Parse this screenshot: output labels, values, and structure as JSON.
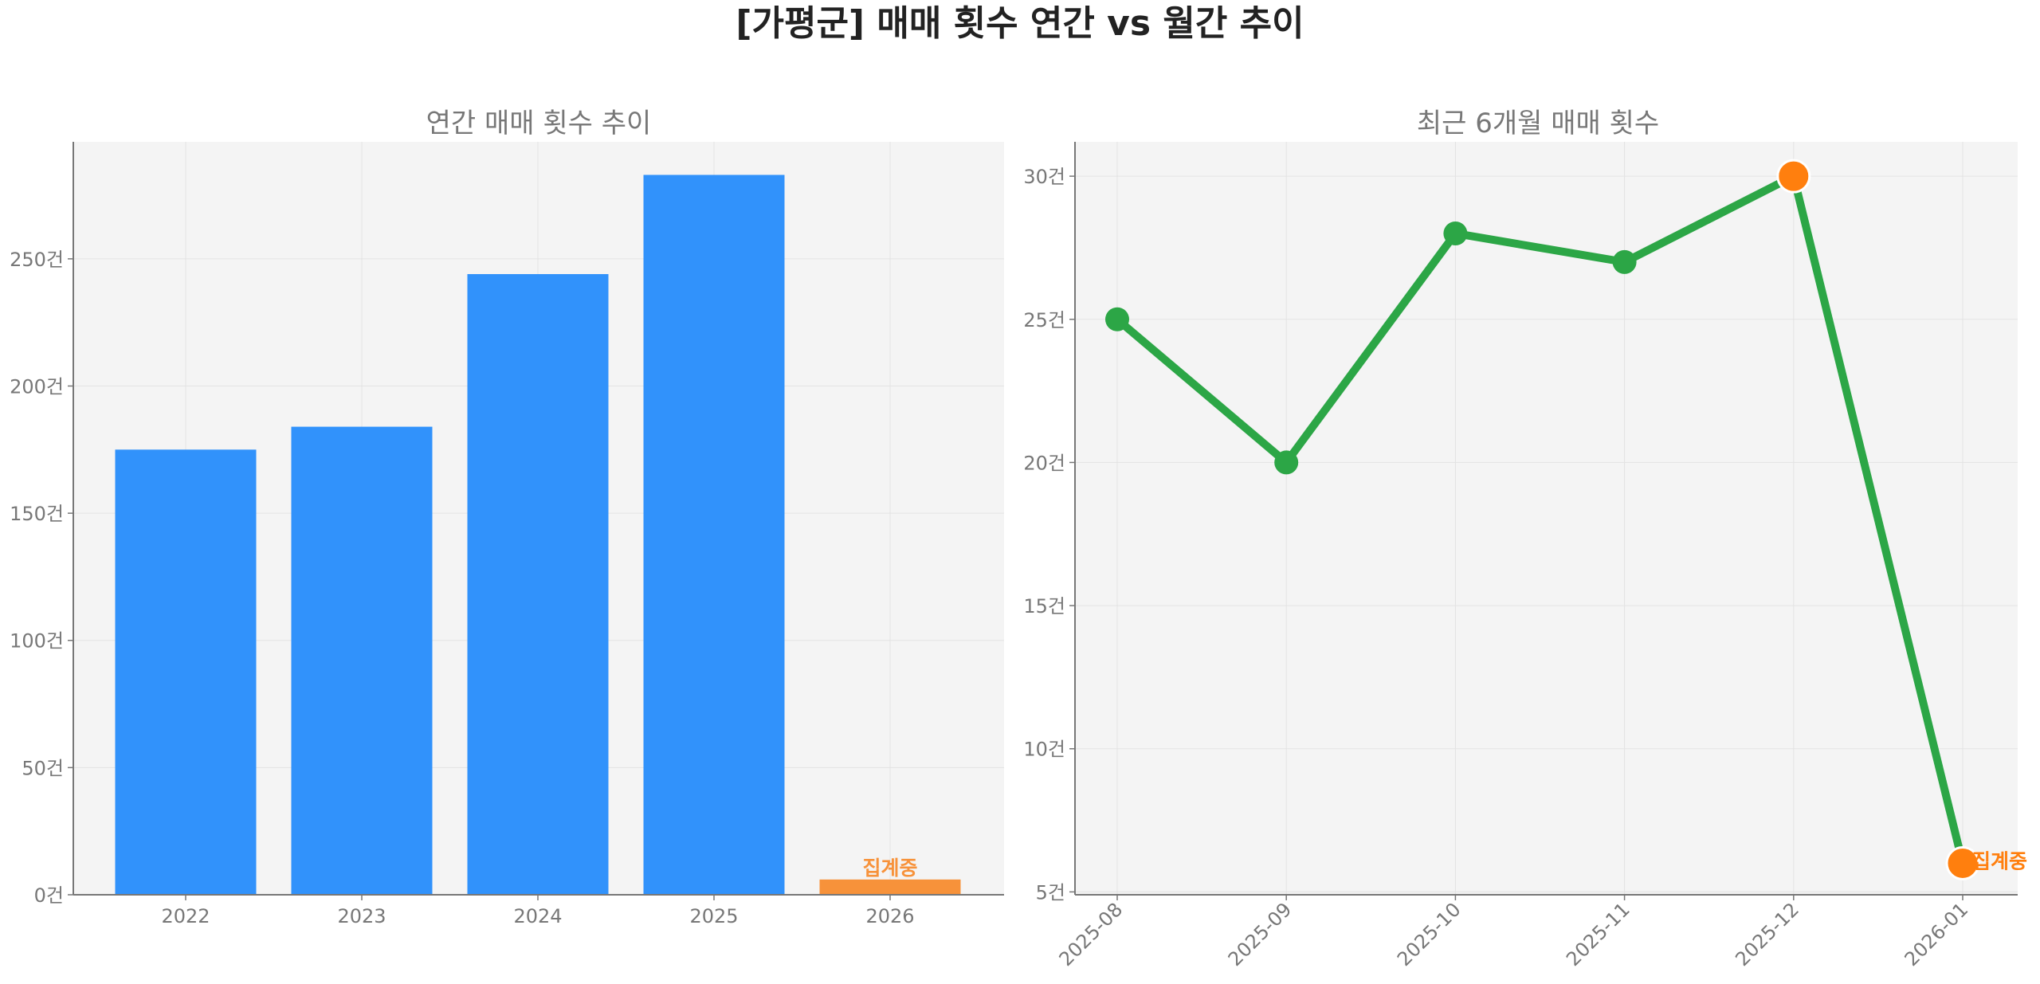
{
  "title": "[가평군] 매매 횟수 연간 vs 월간 추이",
  "colors": {
    "bar": "#3192fb",
    "highlight": "#f7923a",
    "line": "#2ca646",
    "marker_highlight": "#ff7f0e",
    "panel_bg": "#f4f4f4",
    "grid": "#e3e3e3",
    "axis": "#777777"
  },
  "chart_data": [
    {
      "type": "bar",
      "title": "연간 매매 횟수 추이",
      "categories": [
        "2022",
        "2023",
        "2024",
        "2025",
        "2026"
      ],
      "values": [
        175,
        184,
        244,
        283,
        6
      ],
      "highlight_index": 4,
      "highlight_label": "집계중",
      "ylim": [
        0,
        296
      ],
      "yticks": [
        0,
        50,
        100,
        150,
        200,
        250
      ],
      "ytick_labels": [
        "0건",
        "50건",
        "100건",
        "150건",
        "200건",
        "250건"
      ],
      "grid": true
    },
    {
      "type": "line",
      "title": "최근 6개월 매매 횟수",
      "categories": [
        "2025-08",
        "2025-09",
        "2025-10",
        "2025-11",
        "2025-12",
        "2026-01"
      ],
      "values": [
        25,
        20,
        28,
        27,
        30,
        6
      ],
      "highlight_indices": [
        4,
        5
      ],
      "highlight_label": "집계중",
      "highlight_label_index": 5,
      "ylim": [
        4.9,
        31.2
      ],
      "yticks": [
        5,
        10,
        15,
        20,
        25,
        30
      ],
      "ytick_labels": [
        "5건",
        "10건",
        "15건",
        "20건",
        "25건",
        "30건"
      ],
      "grid": true
    }
  ]
}
